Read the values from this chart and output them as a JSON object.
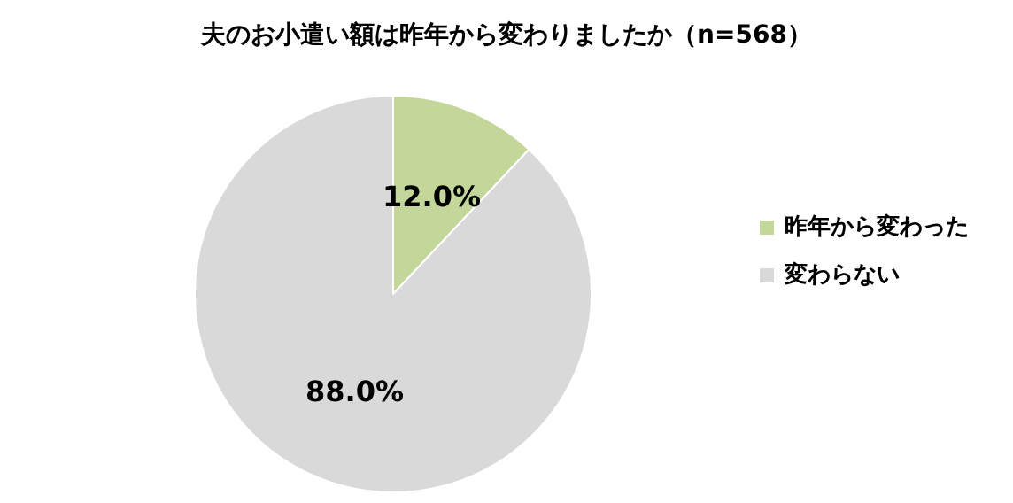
{
  "chart_data": {
    "type": "pie",
    "title": "夫のお小遣い額は昨年から変わりましたか（n=568）",
    "categories": [
      "昨年から変わった",
      "変わらない"
    ],
    "values": [
      12.0,
      88.0
    ],
    "colors": [
      "#c4d79b",
      "#d9d9d9"
    ],
    "value_labels": [
      "12.0%",
      "88.0%"
    ],
    "legend": "right"
  }
}
